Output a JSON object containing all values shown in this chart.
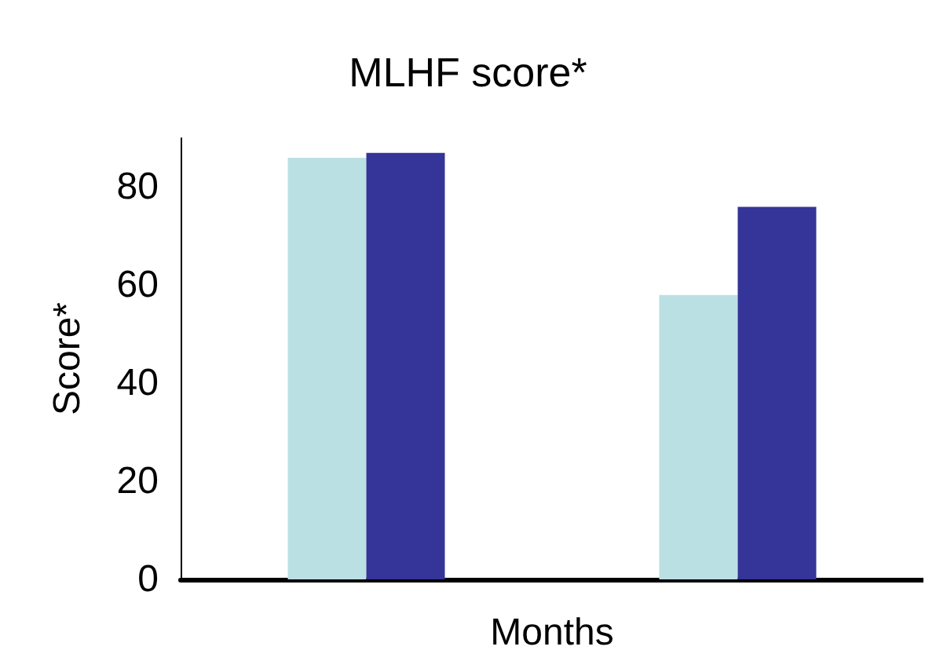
{
  "chart_data": {
    "type": "bar",
    "title": "MLHF score*",
    "xlabel": "Months",
    "ylabel": "Score*",
    "categories": [
      null,
      null
    ],
    "series": [
      {
        "color": "#bbe0e3",
        "values": [
          86,
          58
        ]
      },
      {
        "color": "#353499",
        "values": [
          87,
          76
        ]
      }
    ],
    "ylim": [
      0,
      90
    ],
    "yticks": [
      0,
      20,
      40,
      60,
      80
    ],
    "grid": false
  }
}
